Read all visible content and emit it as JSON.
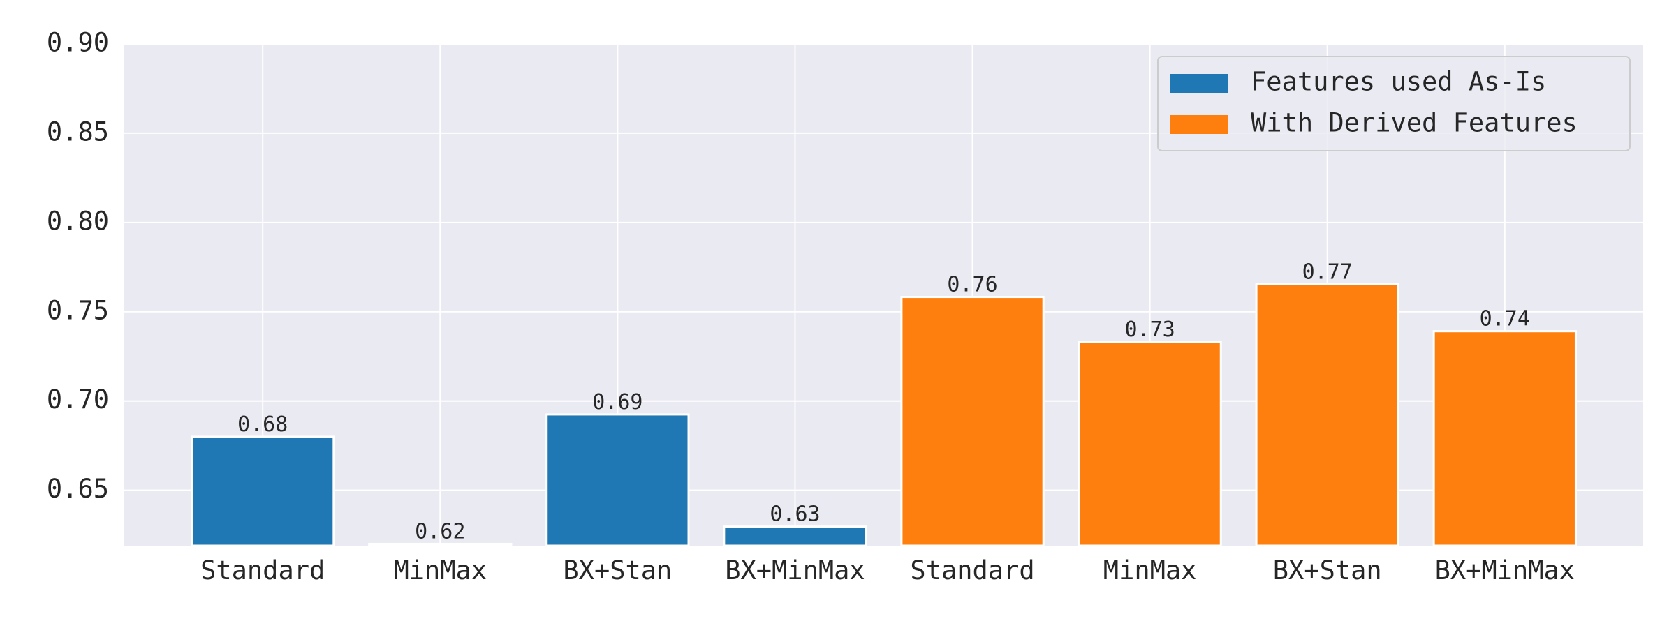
{
  "chart_data": {
    "type": "bar",
    "categories": [
      "Standard",
      "MinMax",
      "BX+Stan",
      "BX+MinMax",
      "Standard",
      "MinMax",
      "BX+Stan",
      "BX+MinMax"
    ],
    "series": [
      {
        "name": "Features used As-Is",
        "color": "#1f77b4",
        "values": [
          0.68,
          0.62,
          0.6925,
          0.6297,
          null,
          null,
          null,
          null
        ],
        "value_labels": [
          "0.68",
          "0.62",
          "0.69",
          "0.63",
          null,
          null,
          null,
          null
        ]
      },
      {
        "name": "With Derived Features",
        "color": "#ff7f0e",
        "values": [
          null,
          null,
          null,
          null,
          0.7583,
          0.7331,
          0.7654,
          0.7391
        ],
        "value_labels": [
          null,
          null,
          null,
          null,
          "0.76",
          "0.73",
          "0.77",
          "0.74"
        ]
      }
    ],
    "ylim": [
      0.619,
      0.9
    ],
    "yticks": [
      0.65,
      {
        "value": 0.7,
        "label": "0.70"
      },
      0.75,
      {
        "value": 0.8,
        "label": "0.80"
      },
      0.85,
      {
        "value": 0.9,
        "label": "0.90"
      }
    ],
    "grid": true,
    "legend": "upper right"
  }
}
